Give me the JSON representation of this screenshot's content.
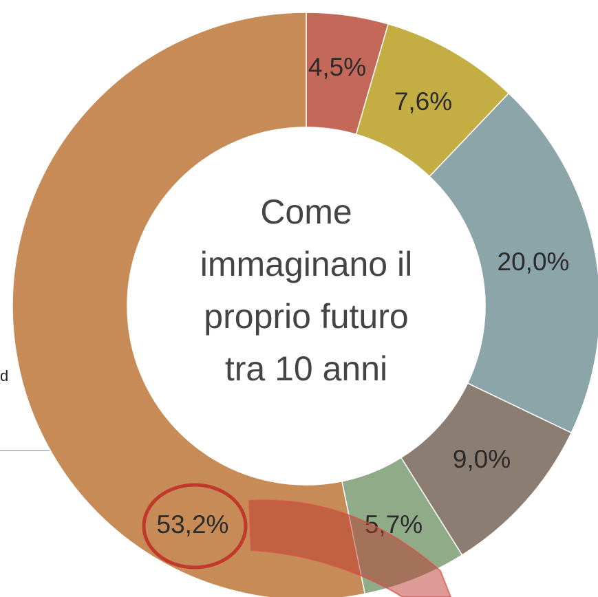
{
  "chart_data": {
    "type": "donut",
    "title_lines": [
      "Come",
      "immaginano il",
      "proprio futuro",
      "tra 10 anni"
    ],
    "annotation": "d",
    "values": [
      4.5,
      7.6,
      20.0,
      9.0,
      5.7,
      53.2
    ],
    "value_labels": [
      "4,5%",
      "7,6%",
      "20,0%",
      "9,0%",
      "5,7%",
      "53,2%"
    ],
    "colors": [
      "#c4695a",
      "#c4ae44",
      "#8ba5a8",
      "#8c7d72",
      "#8fab88",
      "#c68b57"
    ]
  }
}
